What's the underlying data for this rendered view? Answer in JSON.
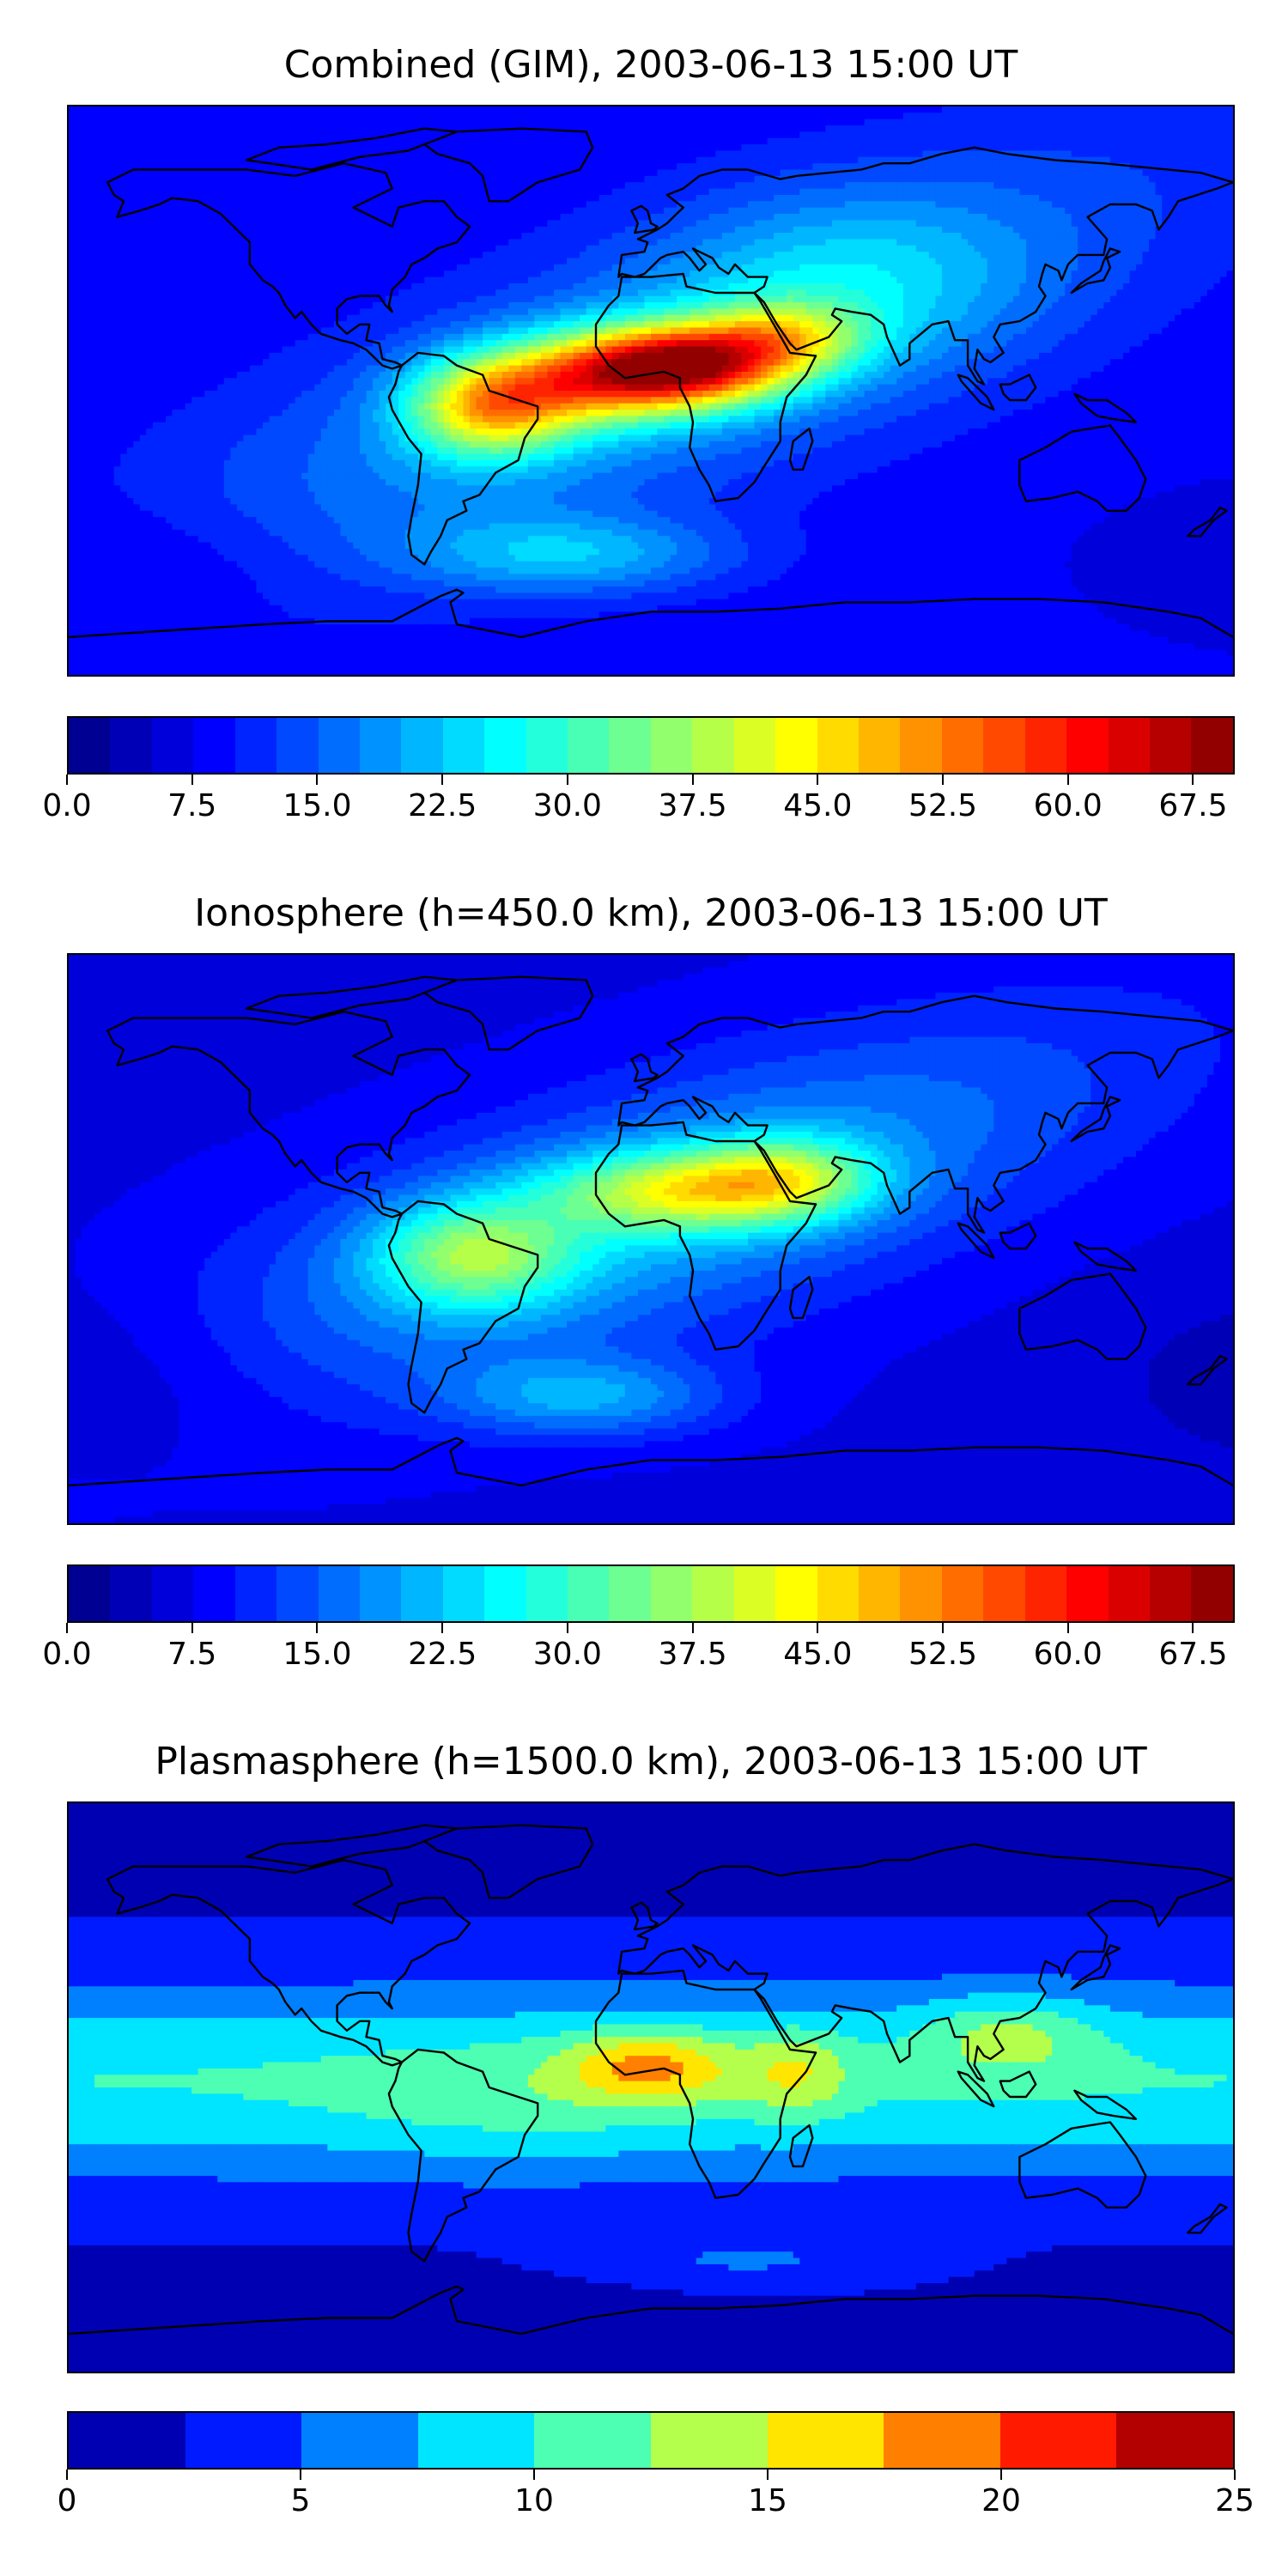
{
  "chart_data": [
    {
      "type": "heatmap",
      "title": "Combined (GIM), 2003-06-13 15:00 UT",
      "colorbar": {
        "min": 0.0,
        "max": 70.0,
        "levels": 28,
        "level_step": 2.5,
        "tick_values": [
          0.0,
          7.5,
          15.0,
          22.5,
          30.0,
          37.5,
          45.0,
          52.5,
          60.0,
          67.5
        ],
        "tick_labels": [
          "0.0",
          "7.5",
          "15.0",
          "22.5",
          "30.0",
          "37.5",
          "45.0",
          "52.5",
          "60.0",
          "67.5"
        ]
      },
      "features": [
        {
          "region": "equatorial Africa (maximum)",
          "lon": 10,
          "lat": 7,
          "value": 63
        },
        {
          "region": "northern South America",
          "lon": -55,
          "lat": -3,
          "value": 50
        },
        {
          "region": "Arabia / Red Sea",
          "lon": 40,
          "lat": 15,
          "value": 45
        },
        {
          "region": "Atlantic crest",
          "lon": -20,
          "lat": 5,
          "value": 55
        },
        {
          "region": "southwest Atlantic",
          "lon": -25,
          "lat": -50,
          "value": 25
        },
        {
          "region": "southern Pacific",
          "lon": -150,
          "lat": -55,
          "value": 8
        },
        {
          "region": "Australia",
          "lon": 135,
          "lat": -25,
          "value": 7
        }
      ]
    },
    {
      "type": "heatmap",
      "title": "Ionosphere  (h=450.0 km), 2003-06-13 15:00 UT",
      "colorbar": {
        "min": 0.0,
        "max": 70.0,
        "levels": 28,
        "level_step": 2.5,
        "tick_values": [
          0.0,
          7.5,
          15.0,
          22.5,
          30.0,
          37.5,
          45.0,
          52.5,
          60.0,
          67.5
        ],
        "tick_labels": [
          "0.0",
          "7.5",
          "15.0",
          "22.5",
          "30.0",
          "37.5",
          "45.0",
          "52.5",
          "60.0",
          "67.5"
        ]
      },
      "features": [
        {
          "region": "west Africa",
          "lon": 5,
          "lat": 15,
          "value": 43
        },
        {
          "region": "Arabia",
          "lon": 42,
          "lat": 20,
          "value": 40
        },
        {
          "region": "northern South America",
          "lon": -60,
          "lat": -5,
          "value": 36
        },
        {
          "region": "southwest Atlantic",
          "lon": -20,
          "lat": -50,
          "value": 22
        },
        {
          "region": "southern Pacific",
          "lon": -160,
          "lat": -50,
          "value": 5
        },
        {
          "region": "Australia",
          "lon": 140,
          "lat": -20,
          "value": 6
        }
      ]
    },
    {
      "type": "heatmap",
      "title": "Plasmasphere (h=1500.0 km), 2003-06-13 15:00 UT",
      "colorbar": {
        "min": 0,
        "max": 25,
        "levels": 10,
        "level_step": 2.5,
        "tick_values": [
          0,
          5,
          10,
          15,
          20,
          25
        ],
        "tick_labels": [
          "0",
          "5",
          "10",
          "15",
          "20",
          "25"
        ]
      },
      "features": [
        {
          "region": "central Africa",
          "lon": 0,
          "lat": 7,
          "value": 19
        },
        {
          "region": "east Africa",
          "lon": 45,
          "lat": 5,
          "value": 16
        },
        {
          "region": "southeast Asia",
          "lon": 110,
          "lat": 17,
          "value": 15
        },
        {
          "region": "central Pacific",
          "lon": -120,
          "lat": 5,
          "value": 9
        },
        {
          "region": "southern Ocean",
          "lon": -60,
          "lat": -70,
          "value": 2
        },
        {
          "region": "high northern latitudes",
          "lon": -60,
          "lat": 70,
          "value": 2
        }
      ]
    }
  ],
  "jet_colormap": [
    "#00007f",
    "#0000ff",
    "#007fff",
    "#00e5f5",
    "#40ffb7",
    "#b7ff40",
    "#ffee00",
    "#ff8c00",
    "#ff1f00",
    "#7f0000"
  ]
}
